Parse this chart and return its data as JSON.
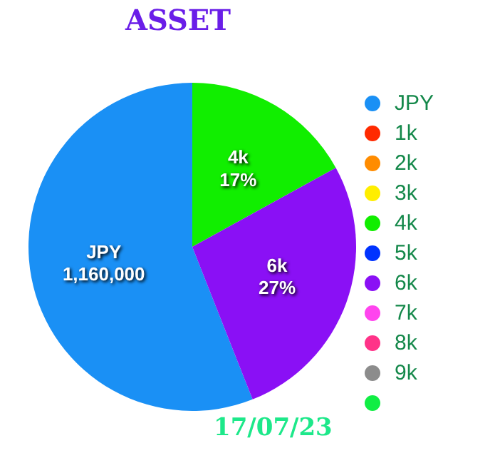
{
  "chart_data": {
    "type": "pie",
    "title": "ASSET",
    "categories": [
      "JPY",
      "1k",
      "2k",
      "3k",
      "4k",
      "5k",
      "6k",
      "7k",
      "8k",
      "9k",
      null
    ],
    "values": [
      56,
      0,
      0,
      0,
      17,
      0,
      27,
      0,
      0,
      0,
      0
    ],
    "colors": [
      "#1a90f5",
      "#ff2a00",
      "#ff8c00",
      "#ffee00",
      "#11ee00",
      "#0033ff",
      "#8a10f5",
      "#ff44ee",
      "#ff3388",
      "#8c8c8c",
      "#11ee44"
    ],
    "value_labels": [
      null,
      null,
      null,
      null,
      "17%",
      null,
      "27%",
      null,
      null,
      null,
      null
    ],
    "legend": "right",
    "annotations": [
      "17/07/23",
      {
        "text": "1,160,000",
        "x": "JPY"
      }
    ]
  }
}
